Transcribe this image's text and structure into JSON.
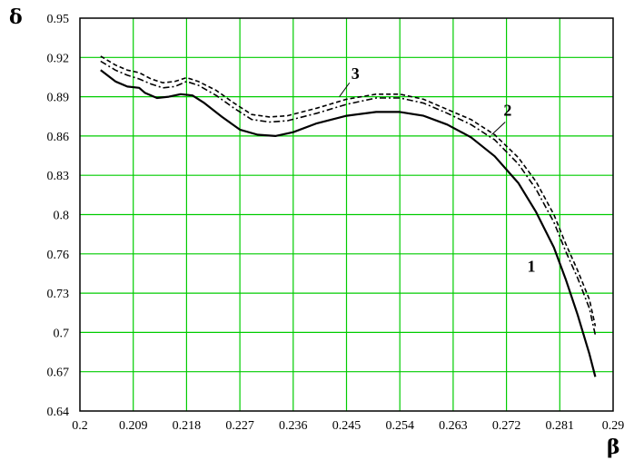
{
  "chart_data": {
    "type": "line",
    "title": "",
    "xlabel": "β",
    "ylabel": "δ",
    "xlim": [
      0.2,
      0.29
    ],
    "ylim": [
      0.64,
      0.95
    ],
    "grid": true,
    "grid_color": "#00cc00",
    "x_ticks": [
      "0.2",
      "0.209",
      "0.218",
      "0.227",
      "0.236",
      "0.245",
      "0.254",
      "0.263",
      "0.272",
      "0.281",
      "0.29"
    ],
    "y_ticks": [
      "0.95",
      "0.92",
      "0.89",
      "0.86",
      "0.83",
      "0.8",
      "0.76",
      "0.73",
      "0.7",
      "0.67",
      "0.64"
    ],
    "series": [
      {
        "name": "1",
        "style": "solid",
        "x": [
          0.2035,
          0.206,
          0.208,
          0.21,
          0.211,
          0.213,
          0.215,
          0.217,
          0.219,
          0.221,
          0.224,
          0.227,
          0.23,
          0.233,
          0.236,
          0.24,
          0.245,
          0.25,
          0.254,
          0.258,
          0.262,
          0.266,
          0.27,
          0.274,
          0.277,
          0.28,
          0.282,
          0.284,
          0.286,
          0.287
        ],
        "y": [
          0.909,
          0.9,
          0.896,
          0.895,
          0.891,
          0.887,
          0.888,
          0.89,
          0.889,
          0.883,
          0.872,
          0.862,
          0.858,
          0.857,
          0.86,
          0.867,
          0.873,
          0.876,
          0.876,
          0.873,
          0.866,
          0.856,
          0.841,
          0.82,
          0.797,
          0.769,
          0.744,
          0.716,
          0.685,
          0.667
        ]
      },
      {
        "name": "2",
        "style": "dashed",
        "x": [
          0.2035,
          0.206,
          0.208,
          0.21,
          0.212,
          0.214,
          0.216,
          0.218,
          0.22,
          0.223,
          0.226,
          0.229,
          0.232,
          0.235,
          0.24,
          0.245,
          0.25,
          0.254,
          0.258,
          0.262,
          0.266,
          0.27,
          0.274,
          0.277,
          0.28,
          0.282,
          0.284,
          0.286,
          0.287
        ],
        "y": [
          0.92,
          0.913,
          0.909,
          0.907,
          0.902,
          0.899,
          0.9,
          0.903,
          0.9,
          0.893,
          0.883,
          0.874,
          0.872,
          0.873,
          0.879,
          0.886,
          0.89,
          0.89,
          0.886,
          0.878,
          0.87,
          0.858,
          0.84,
          0.821,
          0.795,
          0.772,
          0.751,
          0.728,
          0.707
        ]
      },
      {
        "name": "3",
        "style": "dash-dot",
        "x": [
          0.2035,
          0.206,
          0.208,
          0.21,
          0.212,
          0.214,
          0.216,
          0.218,
          0.22,
          0.223,
          0.226,
          0.229,
          0.232,
          0.235,
          0.24,
          0.245,
          0.25,
          0.254,
          0.258,
          0.262,
          0.266,
          0.27,
          0.274,
          0.277,
          0.28,
          0.282,
          0.284,
          0.286,
          0.287
        ],
        "y": [
          0.916,
          0.909,
          0.905,
          0.902,
          0.898,
          0.895,
          0.896,
          0.9,
          0.897,
          0.889,
          0.879,
          0.87,
          0.868,
          0.869,
          0.875,
          0.882,
          0.887,
          0.887,
          0.883,
          0.875,
          0.866,
          0.854,
          0.835,
          0.815,
          0.789,
          0.766,
          0.745,
          0.721,
          0.7
        ]
      }
    ],
    "curve_labels": [
      {
        "text": "3",
        "x": 0.2465,
        "y": 0.902
      },
      {
        "text": "2",
        "x": 0.2722,
        "y": 0.873
      },
      {
        "text": "1",
        "x": 0.2762,
        "y": 0.75
      }
    ]
  }
}
